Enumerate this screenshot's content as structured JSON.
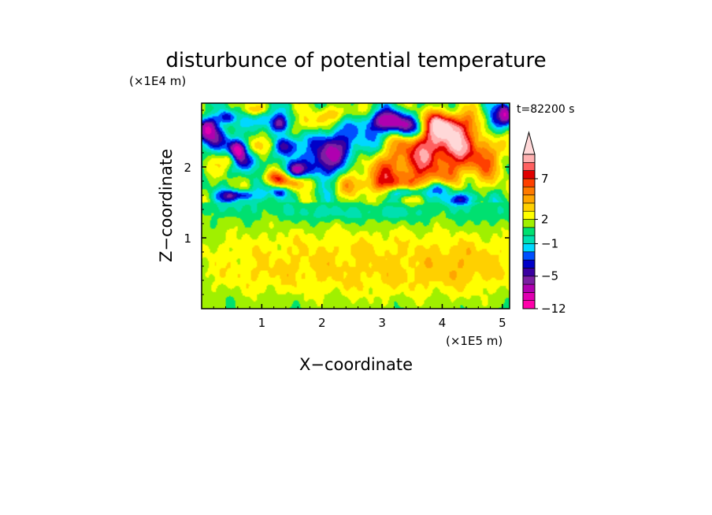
{
  "chart_data": {
    "type": "heatmap",
    "title": "disturbunce of potential temperature",
    "xlabel": "X−coordinate",
    "ylabel": "Z−coordinate",
    "x_unit": "(×1E5 m)",
    "y_unit": "(×1E4 m)",
    "time_label": "t=82200 s",
    "xlim": [
      0,
      5.12
    ],
    "ylim": [
      0,
      2.9
    ],
    "x_ticks": [
      1,
      2,
      3,
      4,
      5
    ],
    "x_tick_labels": [
      "1",
      "2",
      "3",
      "4",
      "5"
    ],
    "y_ticks": [
      1,
      2
    ],
    "y_tick_labels": [
      "1",
      "2"
    ],
    "colorbar": {
      "levels": [
        -12,
        -10,
        -8,
        -6,
        -5,
        -4,
        -3,
        -2,
        -1,
        0,
        1,
        2,
        3,
        4,
        5,
        6,
        7,
        8,
        9,
        10
      ],
      "colors": [
        "#ff00aa",
        "#e000b0",
        "#b000b0",
        "#7b1fa2",
        "#3a00a0",
        "#0000c8",
        "#0050ff",
        "#00d8ff",
        "#00e0b0",
        "#00e070",
        "#a0f000",
        "#ffff00",
        "#ffd000",
        "#ffa500",
        "#ff7a00",
        "#ff4000",
        "#e00000",
        "#ff6060",
        "#ffb0b0",
        "#ffd8d8"
      ],
      "labels": [
        {
          "value": -12,
          "text": "−12"
        },
        {
          "value": -5,
          "text": "−5"
        },
        {
          "value": -1,
          "text": "−1"
        },
        {
          "value": 2,
          "text": "2"
        },
        {
          "value": 7,
          "text": "7"
        }
      ],
      "extend": "max"
    },
    "features": [
      {
        "x": 2.2,
        "z": 1.2,
        "sx": 3.2,
        "sz": 0.25,
        "v": 0.0
      },
      {
        "x": 2.5,
        "z": 0.9,
        "sx": 3.0,
        "sz": 0.3,
        "v": 1.5
      },
      {
        "x": 3.0,
        "z": 0.45,
        "sx": 2.0,
        "sz": 0.35,
        "v": 2.0
      },
      {
        "x": 0.8,
        "z": 0.5,
        "sx": 1.2,
        "sz": 0.3,
        "v": 1.2
      },
      {
        "x": 4.5,
        "z": 0.6,
        "sx": 0.8,
        "sz": 0.35,
        "v": 1.5
      },
      {
        "x": 2.0,
        "z": 1.35,
        "sx": 0.6,
        "sz": 0.12,
        "v": -1.5
      },
      {
        "x": 3.2,
        "z": 1.35,
        "sx": 0.7,
        "sz": 0.12,
        "v": -1.5
      },
      {
        "x": 0.6,
        "z": 1.45,
        "sx": 0.8,
        "sz": 0.15,
        "v": -1.0
      },
      {
        "x": 4.7,
        "z": 1.35,
        "sx": 0.5,
        "sz": 0.15,
        "v": -1.0
      },
      {
        "x": 3.4,
        "z": 2.0,
        "sx": 0.9,
        "sz": 0.3,
        "v": 5.0
      },
      {
        "x": 3.9,
        "z": 2.35,
        "sx": 0.6,
        "sz": 0.25,
        "v": 6.0
      },
      {
        "x": 4.0,
        "z": 2.6,
        "sx": 0.4,
        "sz": 0.18,
        "v": 8.0
      },
      {
        "x": 4.6,
        "z": 2.2,
        "sx": 0.6,
        "sz": 0.4,
        "v": 4.0
      },
      {
        "x": 3.0,
        "z": 1.75,
        "sx": 0.8,
        "sz": 0.15,
        "v": 3.0
      },
      {
        "x": 3.1,
        "z": 2.65,
        "sx": 0.35,
        "sz": 0.15,
        "v": -8.0
      },
      {
        "x": 3.5,
        "z": 2.55,
        "sx": 0.35,
        "sz": 0.15,
        "v": -6.0
      },
      {
        "x": 2.4,
        "z": 2.3,
        "sx": 0.5,
        "sz": 0.3,
        "v": -5.0
      },
      {
        "x": 2.0,
        "z": 2.05,
        "sx": 0.3,
        "sz": 0.3,
        "v": -6.0
      },
      {
        "x": 1.4,
        "z": 2.3,
        "sx": 0.2,
        "sz": 0.15,
        "v": -7.0
      },
      {
        "x": 1.55,
        "z": 1.95,
        "sx": 0.2,
        "sz": 0.12,
        "v": -6.0
      },
      {
        "x": 0.3,
        "z": 2.4,
        "sx": 0.2,
        "sz": 0.2,
        "v": -6.0
      },
      {
        "x": 0.1,
        "z": 2.55,
        "sx": 0.15,
        "sz": 0.15,
        "v": -7.0
      },
      {
        "x": 0.75,
        "z": 2.1,
        "sx": 0.2,
        "sz": 0.15,
        "v": -6.0
      },
      {
        "x": 0.6,
        "z": 2.25,
        "sx": 0.12,
        "sz": 0.12,
        "v": -9.0
      },
      {
        "x": 0.6,
        "z": 1.6,
        "sx": 0.3,
        "sz": 0.08,
        "v": -6.0
      },
      {
        "x": 1.3,
        "z": 1.65,
        "sx": 0.15,
        "sz": 0.08,
        "v": -5.0
      },
      {
        "x": 3.4,
        "z": 1.65,
        "sx": 0.3,
        "sz": 0.08,
        "v": -5.5
      },
      {
        "x": 4.0,
        "z": 1.7,
        "sx": 0.2,
        "sz": 0.1,
        "v": -5.0
      },
      {
        "x": 4.3,
        "z": 1.55,
        "sx": 0.3,
        "sz": 0.1,
        "v": -5.0
      },
      {
        "x": 4.9,
        "z": 2.6,
        "sx": 0.15,
        "sz": 0.25,
        "v": -6.0
      },
      {
        "x": 5.05,
        "z": 2.75,
        "sx": 0.1,
        "sz": 0.15,
        "v": -8.0
      },
      {
        "x": 1.0,
        "z": 2.7,
        "sx": 0.2,
        "sz": 0.15,
        "v": -5.0
      },
      {
        "x": 1.3,
        "z": 2.6,
        "sx": 0.15,
        "sz": 0.12,
        "v": -6.0
      },
      {
        "x": 0.4,
        "z": 2.7,
        "sx": 0.15,
        "sz": 0.1,
        "v": -5.0
      },
      {
        "x": 0.45,
        "z": 2.1,
        "sx": 0.15,
        "sz": 0.12,
        "v": 4.0
      },
      {
        "x": 1.1,
        "z": 2.3,
        "sx": 0.2,
        "sz": 0.15,
        "v": 4.0
      },
      {
        "x": 1.2,
        "z": 1.85,
        "sx": 0.2,
        "sz": 0.1,
        "v": 4.0
      },
      {
        "x": 1.6,
        "z": 1.8,
        "sx": 0.3,
        "sz": 0.12,
        "v": 4.5
      },
      {
        "x": 0.9,
        "z": 2.8,
        "sx": 0.2,
        "sz": 0.1,
        "v": 4.0
      },
      {
        "x": 2.3,
        "z": 2.75,
        "sx": 0.3,
        "sz": 0.12,
        "v": 3.0
      },
      {
        "x": 1.8,
        "z": 2.6,
        "sx": 0.2,
        "sz": 0.15,
        "v": 3.5
      }
    ]
  }
}
